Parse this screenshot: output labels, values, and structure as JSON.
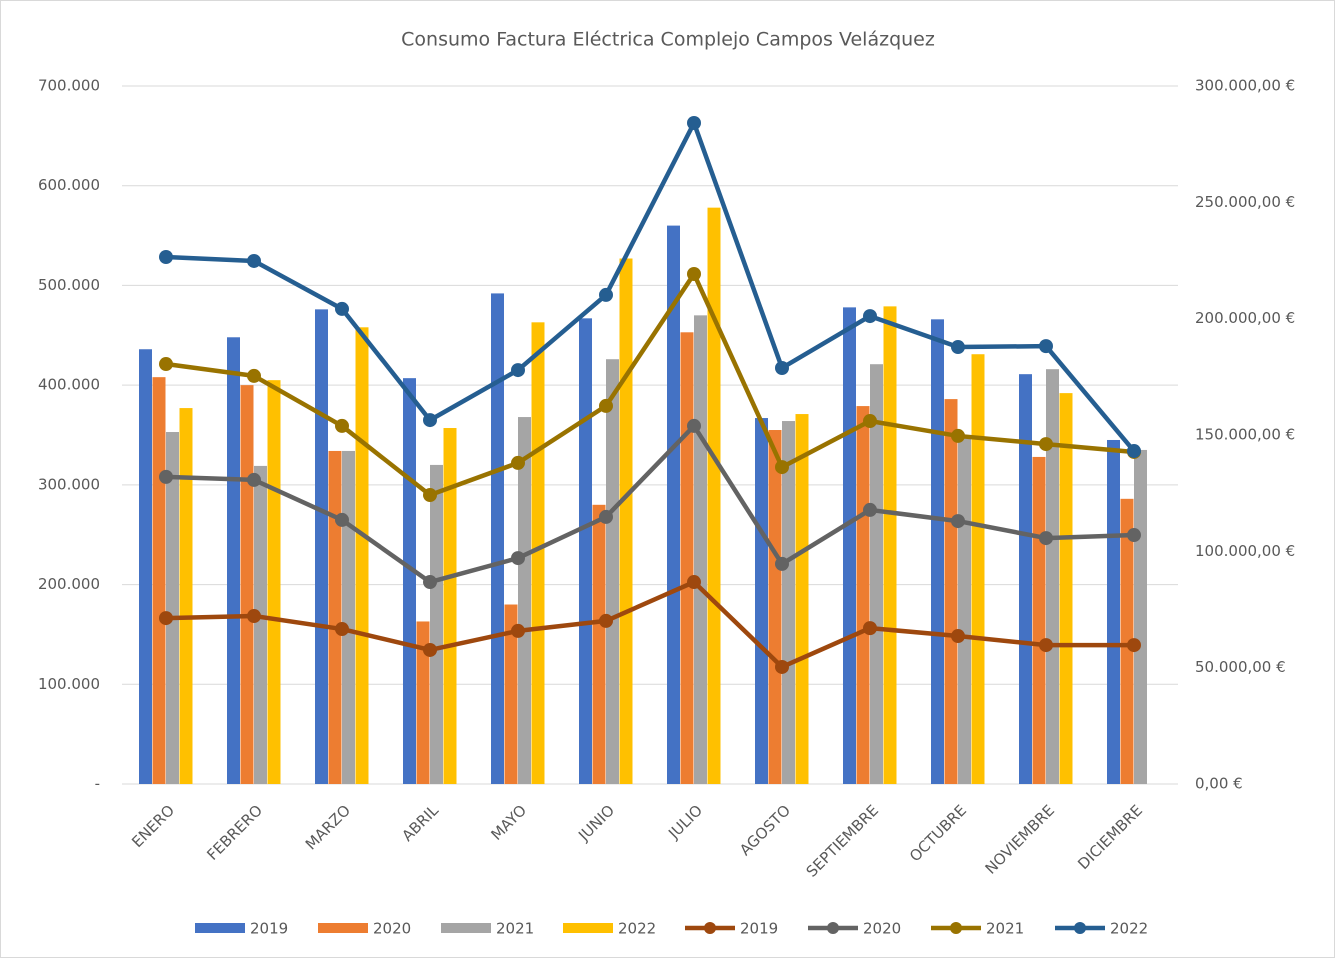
{
  "chart_data": {
    "type": "bar",
    "title": "Consumo Factura Eléctrica Complejo Campos Velázquez",
    "categories": [
      "ENERO",
      "FEBRERO",
      "MARZO",
      "ABRIL",
      "MAYO",
      "JUNIO",
      "JULIO",
      "AGOSTO",
      "SEPTIEMBRE",
      "OCTUBRE",
      "NOVIEMBRE",
      "DICIEMBRE"
    ],
    "series": [
      {
        "name": "2019",
        "type": "bar",
        "color": "#4472c4",
        "values": [
          436000,
          448000,
          476000,
          407000,
          492000,
          467000,
          560000,
          367000,
          478000,
          466000,
          411000,
          345000
        ]
      },
      {
        "name": "2020",
        "type": "bar",
        "color": "#ed7d31",
        "values": [
          408000,
          400000,
          334000,
          163000,
          180000,
          280000,
          453000,
          355000,
          379000,
          386000,
          328000,
          286000
        ]
      },
      {
        "name": "2021",
        "type": "bar",
        "color": "#a5a5a5",
        "values": [
          353000,
          319000,
          334000,
          320000,
          368000,
          426000,
          470000,
          364000,
          421000,
          350000,
          416000,
          335000
        ]
      },
      {
        "name": "2022",
        "type": "bar",
        "color": "#ffc000",
        "values": [
          377000,
          405000,
          458000,
          357000,
          463000,
          527000,
          578000,
          371000,
          479000,
          431000,
          392000,
          null
        ]
      },
      {
        "name": "2019",
        "type": "line",
        "axis": "y2",
        "color": "#9e480e",
        "values": [
          71300,
          72200,
          66600,
          57600,
          65800,
          70100,
          86800,
          50300,
          67000,
          63600,
          59700,
          59700
        ]
      },
      {
        "name": "2020",
        "type": "line",
        "axis": "y2",
        "color": "#636363",
        "values": [
          132000,
          130700,
          113500,
          86800,
          97100,
          114800,
          153900,
          94600,
          117800,
          113000,
          105700,
          107000
        ]
      },
      {
        "name": "2021",
        "type": "line",
        "axis": "y2",
        "color": "#997300",
        "values": [
          180500,
          175400,
          153900,
          124200,
          138000,
          162500,
          219200,
          136200,
          156000,
          149600,
          146100,
          142700
        ]
      },
      {
        "name": "2022",
        "type": "line",
        "axis": "y2",
        "color": "#255e91",
        "values": [
          226500,
          224800,
          204200,
          156400,
          177900,
          210200,
          284100,
          178800,
          201100,
          187800,
          188200,
          143100
        ]
      }
    ],
    "ylim": [
      0,
      700000
    ],
    "yticks": [
      {
        "value": 0,
        "label": "-"
      },
      {
        "value": 100000,
        "label": "100.000"
      },
      {
        "value": 200000,
        "label": "200.000"
      },
      {
        "value": 300000,
        "label": "300.000"
      },
      {
        "value": 400000,
        "label": "400.000"
      },
      {
        "value": 500000,
        "label": "500.000"
      },
      {
        "value": 600000,
        "label": "600.000"
      },
      {
        "value": 700000,
        "label": "700.000"
      }
    ],
    "y2lim": [
      0,
      300000
    ],
    "y2ticks": [
      {
        "value": 0,
        "label": "0,00 €"
      },
      {
        "value": 50000,
        "label": "50.000,00 €"
      },
      {
        "value": 100000,
        "label": "100.000,00 €"
      },
      {
        "value": 150000,
        "label": "150.000,00 €"
      },
      {
        "value": 200000,
        "label": "200.000,00 €"
      },
      {
        "value": 250000,
        "label": "250.000,00 €"
      },
      {
        "value": 300000,
        "label": "300.000,00 €"
      }
    ],
    "grid": true,
    "legend": "bottom"
  }
}
